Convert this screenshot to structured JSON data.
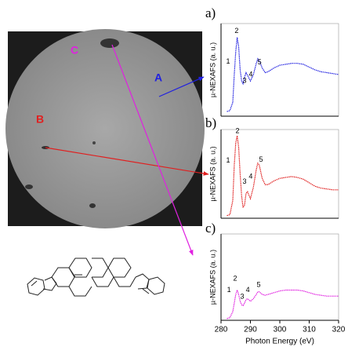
{
  "micrograph": {
    "labels": [
      {
        "text": "A",
        "color": "#2020e0"
      },
      {
        "text": "B",
        "color": "#e02020"
      },
      {
        "text": "C",
        "color": "#e020e0"
      }
    ]
  },
  "chart_data": [
    {
      "type": "line",
      "panel_label": "a)",
      "ylabel": "µ-NEXAFS (a. u.)",
      "x": [
        282,
        283,
        284,
        284.5,
        285,
        285.5,
        286,
        286.5,
        287,
        287.5,
        288,
        288.5,
        289,
        290,
        291,
        292,
        292.5,
        293,
        294,
        295,
        296,
        298,
        300,
        302,
        304,
        306,
        308,
        310,
        312,
        314,
        316,
        318,
        320
      ],
      "series": [
        {
          "color": "#2020e0",
          "values": [
            0.05,
            0.06,
            0.15,
            0.45,
            0.7,
            0.85,
            0.75,
            0.5,
            0.38,
            0.35,
            0.42,
            0.47,
            0.44,
            0.38,
            0.45,
            0.57,
            0.62,
            0.6,
            0.52,
            0.47,
            0.48,
            0.52,
            0.55,
            0.56,
            0.57,
            0.57,
            0.56,
            0.53,
            0.5,
            0.48,
            0.47,
            0.46,
            0.45
          ]
        }
      ],
      "xlim": [
        280,
        320
      ],
      "ylim": [
        0,
        1
      ],
      "annotations": [
        {
          "text": "1",
          "x": 282.4,
          "y": 0.59
        },
        {
          "text": "2",
          "x": 285.3,
          "y": 0.92
        },
        {
          "text": "3",
          "x": 288,
          "y": 0.38
        },
        {
          "text": "4",
          "x": 290.1,
          "y": 0.45
        },
        {
          "text": "5",
          "x": 293.1,
          "y": 0.58
        }
      ]
    },
    {
      "type": "line",
      "panel_label": "b)",
      "ylabel": "µ-NEXAFS (a. u.)",
      "x": [
        282,
        283,
        284,
        284.5,
        285,
        285.5,
        286,
        286.5,
        287,
        287.5,
        288,
        288.5,
        289,
        290,
        291,
        292,
        292.5,
        293,
        294,
        295,
        296,
        298,
        300,
        302,
        304,
        306,
        308,
        310,
        312,
        314,
        316,
        318,
        320
      ],
      "series": [
        {
          "color": "#e02020",
          "values": [
            0.03,
            0.04,
            0.2,
            0.6,
            0.85,
            0.93,
            0.8,
            0.5,
            0.25,
            0.12,
            0.15,
            0.28,
            0.3,
            0.22,
            0.35,
            0.55,
            0.62,
            0.6,
            0.45,
            0.38,
            0.38,
            0.42,
            0.45,
            0.46,
            0.47,
            0.46,
            0.44,
            0.4,
            0.36,
            0.34,
            0.33,
            0.32,
            0.32
          ]
        }
      ],
      "xlim": [
        280,
        320
      ],
      "ylim": [
        0,
        1
      ],
      "annotations": [
        {
          "text": "1",
          "x": 282.4,
          "y": 0.65
        },
        {
          "text": "2",
          "x": 285.6,
          "y": 0.98
        },
        {
          "text": "3",
          "x": 288,
          "y": 0.41
        },
        {
          "text": "4",
          "x": 290.1,
          "y": 0.47
        },
        {
          "text": "5",
          "x": 293.6,
          "y": 0.66
        }
      ]
    },
    {
      "type": "line",
      "panel_label": "c)",
      "ylabel": "µ-NEXAFS (a. u.)",
      "xlabel": "Photon Energy (eV)",
      "x": [
        282,
        283,
        284,
        284.5,
        285,
        285.5,
        286,
        286.5,
        287,
        287.5,
        288,
        288.5,
        289,
        290,
        291,
        292,
        292.5,
        293,
        294,
        295,
        296,
        298,
        300,
        302,
        304,
        306,
        308,
        310,
        312,
        314,
        316,
        318,
        320
      ],
      "series": [
        {
          "color": "#e020e0",
          "values": [
            0.02,
            0.03,
            0.1,
            0.2,
            0.3,
            0.35,
            0.3,
            0.22,
            0.18,
            0.17,
            0.2,
            0.24,
            0.25,
            0.22,
            0.25,
            0.3,
            0.33,
            0.33,
            0.3,
            0.29,
            0.3,
            0.32,
            0.34,
            0.35,
            0.35,
            0.35,
            0.34,
            0.32,
            0.3,
            0.29,
            0.28,
            0.28,
            0.28
          ]
        }
      ],
      "xlim": [
        280,
        320
      ],
      "ylim": [
        0,
        1
      ],
      "xticks": [
        280,
        290,
        300,
        310,
        320
      ],
      "annotations": [
        {
          "text": "1",
          "x": 282.7,
          "y": 0.35
        },
        {
          "text": "2",
          "x": 284.8,
          "y": 0.48
        },
        {
          "text": "3",
          "x": 287.2,
          "y": 0.27
        },
        {
          "text": "4",
          "x": 289.1,
          "y": 0.35
        },
        {
          "text": "5",
          "x": 292.8,
          "y": 0.41
        }
      ]
    }
  ]
}
